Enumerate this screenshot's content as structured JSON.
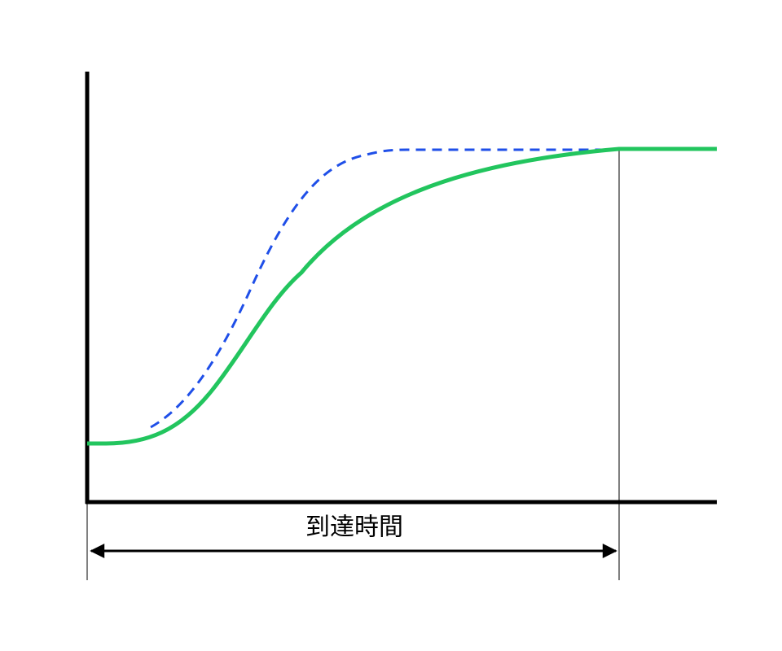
{
  "label": "到達時間"
}
